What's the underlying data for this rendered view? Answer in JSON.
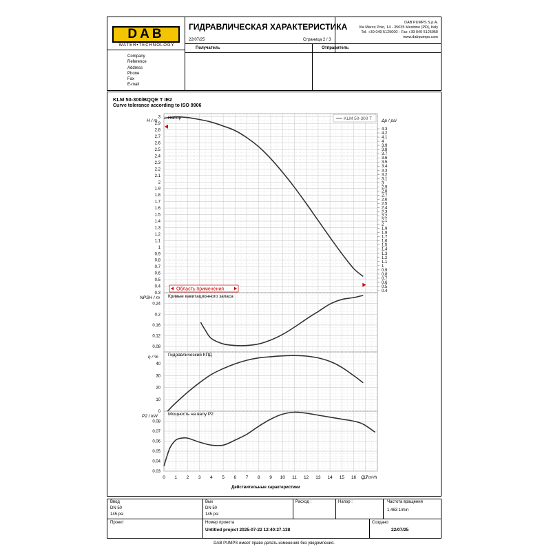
{
  "header": {
    "logo_text": "DAB",
    "logo_tagline": "WATER•TECHNOLOGY",
    "title": "ГИДРАВЛИЧЕСКАЯ ХАРАКТЕРИСТИКА",
    "date": "22/07/25",
    "page": "Страница 2 / 3",
    "company_name": "DAB PUMPS S.p.A.",
    "company_address": "Via Marco Polo, 14 - 35035 Mestrino (PD), Italy",
    "company_phone": "Tel. +39 049 5125000 - Fax +39 049 5125950",
    "company_web": "www.dabpumps.com",
    "recipient_label": "Получатель",
    "sender_label": "Отправитель",
    "contact_labels": [
      "Company",
      "Reference",
      "Address",
      "Phone",
      "Fax",
      "E-mail"
    ]
  },
  "product": {
    "model": "KLM 50-300/BQQE T IE2",
    "tolerance": "Curve tolerance according to ISO 9906"
  },
  "colors": {
    "curve": "#333333",
    "grid": "#bbbbbb",
    "marker": "#cc0000",
    "logo_bg": "#f2c500"
  },
  "charts": {
    "head": {
      "panel_title": "Напор",
      "ylabel": "H / m",
      "ylabel_right": "Δp / psi",
      "legend": "KLM 50-300 T",
      "range_label": "Область применения",
      "yticks": [
        "3",
        "2.9",
        "2.8",
        "2.7",
        "2.6",
        "2.5",
        "2.4",
        "2.3",
        "2.2",
        "2.1",
        "2",
        "1.9",
        "1.8",
        "1.7",
        "1.6",
        "1.5",
        "1.4",
        "1.3",
        "1.2",
        "1.1",
        "1",
        "0.9",
        "0.8",
        "0.7",
        "0.6",
        "0.5",
        "0.4",
        "0.3"
      ],
      "yticks_right": [
        "4.3",
        "4.2",
        "4.1",
        "4",
        "3.9",
        "3.8",
        "3.7",
        "3.6",
        "3.5",
        "3.4",
        "3.3",
        "3.2",
        "3.1",
        "3",
        "2.9",
        "2.8",
        "2.7",
        "2.6",
        "2.5",
        "2.4",
        "2.3",
        "2.2",
        "2.1",
        "2",
        "1.9",
        "1.8",
        "1.7",
        "1.6",
        "1.5",
        "1.4",
        "1.3",
        "1.2",
        "1.1",
        "1",
        "0.9",
        "0.8",
        "0.7",
        "0.6",
        "0.5",
        "0.4"
      ]
    },
    "npsh": {
      "panel_title": "Кривые кавитационного запаса",
      "ylabel": "NPSH / m",
      "yticks": [
        "0.24",
        "0.2",
        "0.16",
        "0.12",
        "0.08"
      ]
    },
    "efficiency": {
      "panel_title": "Гидравлический КПД",
      "ylabel": "η / %",
      "yticks": [
        "40",
        "30",
        "20",
        "10",
        "0"
      ]
    },
    "power": {
      "panel_title": "Мощность на валу  P2",
      "ylabel": "P2 / kW",
      "yticks": [
        "0.08",
        "0.07",
        "0.06",
        "0.05",
        "0.04",
        "0.03"
      ]
    },
    "xaxis": {
      "ticks": [
        "0",
        "1",
        "2",
        "3",
        "4",
        "5",
        "6",
        "7",
        "8",
        "9",
        "10",
        "11",
        "12",
        "13",
        "14",
        "15",
        "16",
        "17"
      ],
      "unit": "Q / m³/h",
      "caption": "Действительные характеристики"
    }
  },
  "chart_data": [
    {
      "type": "line",
      "title": "Напор",
      "ylabel": "H / m",
      "xlabel": "Q / m³/h",
      "xlim": [
        0,
        18
      ],
      "ylim": [
        0.3,
        3.05
      ],
      "series": [
        {
          "name": "KLM 50-300 T",
          "x": [
            0,
            1,
            2,
            3,
            4,
            5,
            6,
            7,
            8,
            9,
            10,
            11,
            12,
            13,
            14,
            15,
            16,
            16.8
          ],
          "y": [
            2.98,
            3.0,
            2.99,
            2.96,
            2.92,
            2.86,
            2.79,
            2.68,
            2.54,
            2.36,
            2.15,
            1.92,
            1.67,
            1.41,
            1.15,
            0.9,
            0.67,
            0.55
          ]
        }
      ],
      "markers": {
        "left_y": 2.85,
        "right_y": 0.42
      }
    },
    {
      "type": "line",
      "title": "Кривые кавитационного запаса",
      "ylabel": "NPSH / m",
      "xlim": [
        0,
        18
      ],
      "ylim": [
        0.06,
        0.28
      ],
      "series": [
        {
          "x": [
            3.1,
            3.5,
            4,
            5,
            6,
            7,
            8,
            9,
            10,
            11,
            12,
            13,
            14,
            15,
            16,
            16.8
          ],
          "y": [
            0.17,
            0.14,
            0.11,
            0.09,
            0.084,
            0.084,
            0.09,
            0.104,
            0.125,
            0.152,
            0.182,
            0.21,
            0.238,
            0.255,
            0.262,
            0.27
          ]
        }
      ]
    },
    {
      "type": "line",
      "title": "Гидравлический КПД",
      "ylabel": "η / %",
      "xlim": [
        0,
        18
      ],
      "ylim": [
        0,
        50
      ],
      "series": [
        {
          "x": [
            0.3,
            1,
            2,
            3,
            4,
            5,
            6,
            7,
            8,
            9,
            10,
            11,
            12,
            13,
            14,
            15,
            16,
            16.8
          ],
          "y": [
            0,
            7,
            16,
            24,
            31,
            36,
            40,
            43,
            45,
            46,
            46.7,
            47,
            46.5,
            45,
            42,
            37,
            30,
            24
          ]
        }
      ]
    },
    {
      "type": "line",
      "title": "Мощность на валу  P2",
      "ylabel": "P2 / kW",
      "xlim": [
        0,
        18
      ],
      "ylim": [
        0.03,
        0.09
      ],
      "series": [
        {
          "x": [
            0,
            0.5,
            1,
            1.5,
            2,
            3,
            4,
            5,
            6,
            7,
            8,
            9,
            10,
            11,
            12,
            13,
            14,
            15,
            16,
            16.8,
            17.8
          ],
          "y": [
            0.035,
            0.053,
            0.061,
            0.063,
            0.063,
            0.059,
            0.056,
            0.056,
            0.061,
            0.067,
            0.075,
            0.082,
            0.087,
            0.089,
            0.088,
            0.086,
            0.084,
            0.082,
            0.08,
            0.077,
            0.069
          ]
        }
      ]
    }
  ],
  "footer": {
    "cells": [
      {
        "label": "Ввод",
        "lines": [
          "DN 50",
          "145 psi"
        ]
      },
      {
        "label": "Вых",
        "lines": [
          "DN 50",
          "145 psi"
        ]
      },
      {
        "label": "Расход :",
        "lines": []
      },
      {
        "label": "Напор :",
        "lines": []
      },
      {
        "label": "Частота вращения",
        "lines": [
          "1.463 1/min"
        ]
      }
    ],
    "project_label": "Проект",
    "project_number_label": "Номер проекта",
    "project_name": "Untitled project 2025-07-22 12:40:27.138",
    "created_label": "Создано",
    "created_date": "22/07/25",
    "disclaimer": "DAB PUMPS имеет право делать изменения без уведомления."
  }
}
